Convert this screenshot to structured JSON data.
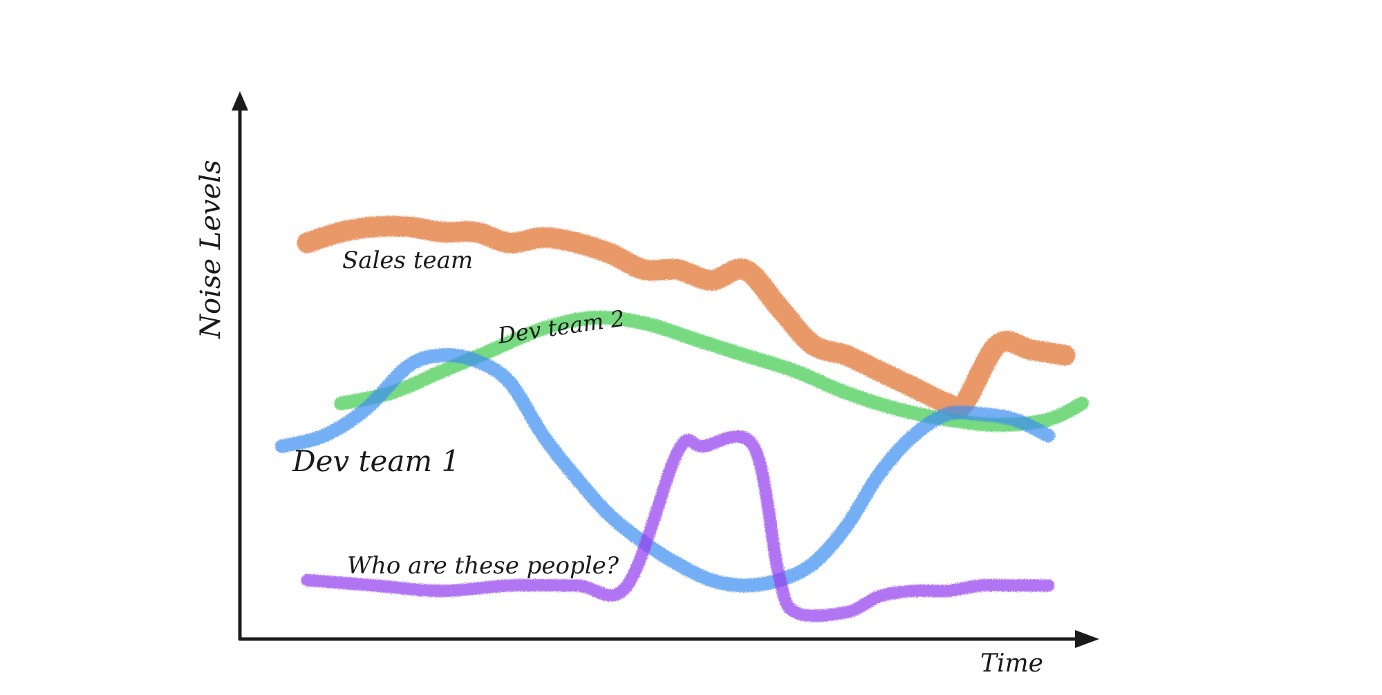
{
  "chart_data": {
    "type": "line",
    "xlabel": "Time",
    "ylabel": "Noise Levels",
    "xlim": [
      0,
      100
    ],
    "ylim": [
      0,
      100
    ],
    "grid": false,
    "legend": "none",
    "series": [
      {
        "name": "Sales team",
        "color": "#e0702c",
        "x": [
          8,
          12,
          16,
          20,
          24,
          28,
          32,
          36,
          40,
          44,
          48,
          52,
          56,
          60,
          64,
          68,
          72,
          76,
          80,
          84,
          86,
          90,
          94,
          98
        ],
        "y": [
          74,
          76,
          77,
          77,
          76,
          76,
          74,
          75,
          74,
          72,
          69,
          69,
          67,
          69,
          62,
          55,
          53,
          50,
          47,
          44,
          44,
          55,
          54,
          53
        ]
      },
      {
        "name": "Dev team 2",
        "color": "#42cc52",
        "x": [
          12,
          18,
          24,
          30,
          36,
          42,
          48,
          54,
          60,
          66,
          72,
          78,
          84,
          90,
          96,
          100
        ],
        "y": [
          44,
          46,
          50,
          54,
          58,
          60,
          59,
          56,
          53,
          50,
          46,
          43,
          41,
          40,
          41,
          44
        ]
      },
      {
        "name": "Dev team 1",
        "color": "#3f8ff0",
        "x": [
          5,
          10,
          15,
          20,
          24,
          28,
          32,
          36,
          40,
          44,
          48,
          52,
          56,
          60,
          64,
          68,
          72,
          76,
          80,
          84,
          88,
          92,
          96
        ],
        "y": [
          36,
          38,
          43,
          51,
          53,
          52,
          48,
          38,
          30,
          23,
          18,
          14,
          11,
          10,
          11,
          14,
          21,
          31,
          38,
          42,
          42,
          41,
          38
        ]
      },
      {
        "name": "Who are these people?",
        "color": "#9340ee",
        "x": [
          8,
          16,
          24,
          32,
          40,
          46,
          52,
          55,
          61,
          64,
          66,
          72,
          76,
          80,
          84,
          88,
          92,
          96
        ],
        "y": [
          11,
          10,
          9,
          10,
          10,
          10,
          35,
          36,
          36,
          12,
          5,
          5,
          8,
          9,
          9,
          10,
          10,
          10
        ]
      }
    ],
    "annotations": [
      {
        "text": "Sales team",
        "series": "Sales team"
      },
      {
        "text": "Dev team 2",
        "series": "Dev team 2"
      },
      {
        "text": "Dev team 1",
        "series": "Dev team 1"
      },
      {
        "text": "Who are these people?",
        "series": "Who are these people?"
      }
    ]
  }
}
